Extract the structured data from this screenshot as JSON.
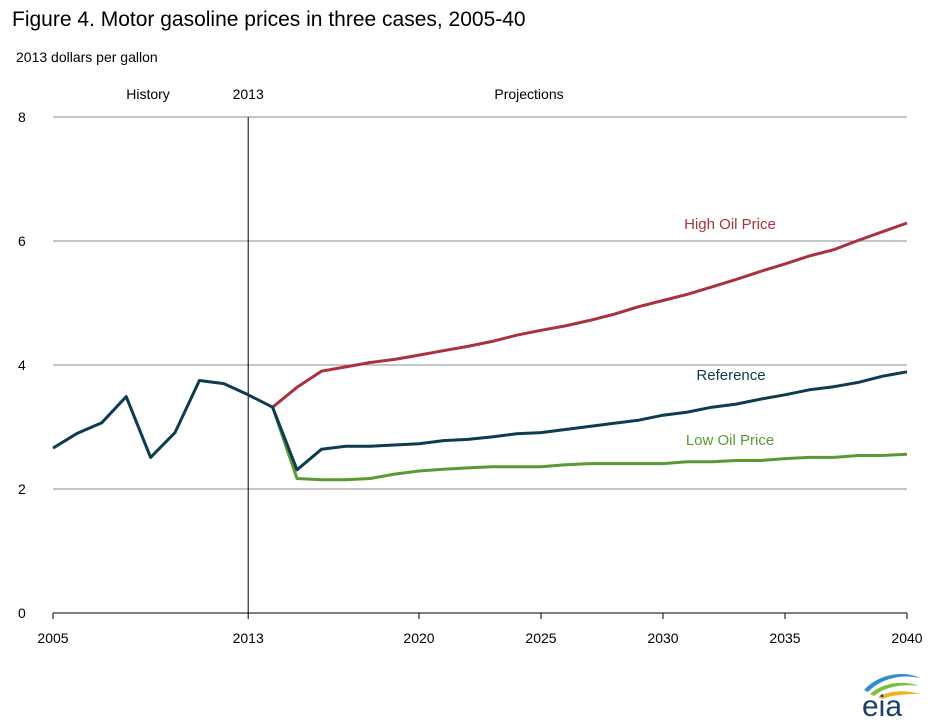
{
  "title": "Figure 4. Motor gasoline prices in three cases, 2005-40",
  "units_label": "2013 dollars  per gallon",
  "region_labels": {
    "history": "History",
    "divider_year": "2013",
    "projections": "Projections"
  },
  "logo_text": "eia",
  "colors": {
    "reference": "#0d3b4f",
    "high": "#a8323d",
    "low": "#5b9a32",
    "grid": "#8c8c8c",
    "divider": "#000000"
  },
  "chart_data": {
    "type": "line",
    "xlim": [
      2005,
      2040
    ],
    "ylim": [
      0,
      8
    ],
    "yticks": [
      0,
      2,
      4,
      6,
      8
    ],
    "xticks": [
      2005,
      2013,
      2020,
      2025,
      2030,
      2035,
      2040
    ],
    "divider_x": 2013,
    "grid": "horizontal",
    "series": [
      {
        "name": "Reference",
        "color_key": "reference",
        "x": [
          2005,
          2006,
          2007,
          2008,
          2009,
          2010,
          2011,
          2012,
          2013,
          2014,
          2015,
          2016,
          2017,
          2018,
          2019,
          2020,
          2021,
          2022,
          2023,
          2024,
          2025,
          2026,
          2027,
          2028,
          2029,
          2030,
          2031,
          2032,
          2033,
          2034,
          2035,
          2036,
          2037,
          2038,
          2039,
          2040
        ],
        "values": [
          2.66,
          2.9,
          3.07,
          3.49,
          2.51,
          2.91,
          3.75,
          3.7,
          3.52,
          3.32,
          2.31,
          2.64,
          2.69,
          2.69,
          2.71,
          2.73,
          2.78,
          2.8,
          2.84,
          2.89,
          2.91,
          2.96,
          3.01,
          3.06,
          3.11,
          3.19,
          3.24,
          3.32,
          3.37,
          3.45,
          3.52,
          3.6,
          3.65,
          3.72,
          3.82,
          3.89
        ]
      },
      {
        "name": "High Oil Price",
        "color_key": "high",
        "x": [
          2014,
          2015,
          2016,
          2017,
          2018,
          2019,
          2020,
          2021,
          2022,
          2023,
          2024,
          2025,
          2026,
          2027,
          2028,
          2029,
          2030,
          2031,
          2032,
          2033,
          2034,
          2035,
          2036,
          2037,
          2038,
          2039,
          2040
        ],
        "values": [
          3.32,
          3.64,
          3.9,
          3.97,
          4.04,
          4.09,
          4.16,
          4.23,
          4.3,
          4.38,
          4.48,
          4.56,
          4.63,
          4.72,
          4.82,
          4.94,
          5.04,
          5.14,
          5.26,
          5.38,
          5.51,
          5.63,
          5.76,
          5.86,
          6.01,
          6.15,
          6.29
        ]
      },
      {
        "name": "Low Oil Price",
        "color_key": "low",
        "x": [
          2014,
          2015,
          2016,
          2017,
          2018,
          2019,
          2020,
          2021,
          2022,
          2023,
          2024,
          2025,
          2026,
          2027,
          2028,
          2029,
          2030,
          2031,
          2032,
          2033,
          2034,
          2035,
          2036,
          2037,
          2038,
          2039,
          2040
        ],
        "values": [
          3.32,
          2.17,
          2.15,
          2.15,
          2.17,
          2.24,
          2.29,
          2.32,
          2.34,
          2.36,
          2.36,
          2.36,
          2.39,
          2.41,
          2.41,
          2.41,
          2.41,
          2.44,
          2.44,
          2.46,
          2.46,
          2.49,
          2.51,
          2.51,
          2.54,
          2.54,
          2.56
        ]
      }
    ]
  }
}
